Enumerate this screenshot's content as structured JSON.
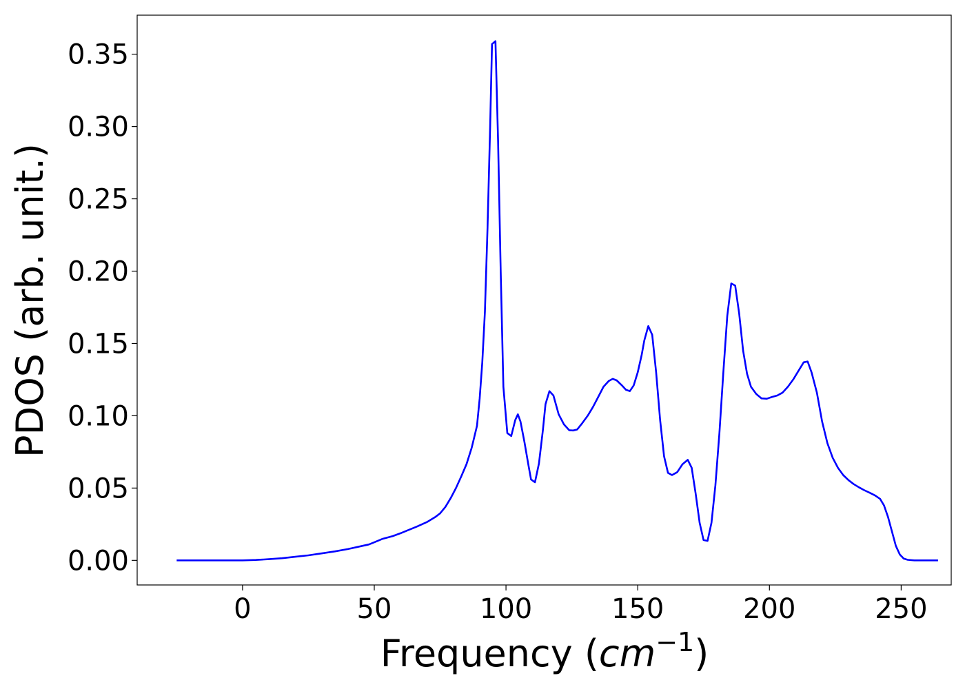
{
  "chart_data": {
    "type": "line",
    "title": "",
    "xlabel": "Frequency (cm⁻¹)",
    "xlabel_parts": {
      "prefix": "Frequency (",
      "italic": "cm",
      "superscript": "−1",
      "suffix": ")"
    },
    "ylabel": "PDOS (arb. unit.)",
    "xlim": [
      -40,
      269
    ],
    "ylim": [
      -0.017,
      0.377
    ],
    "xticks": [
      0,
      50,
      100,
      150,
      200,
      250
    ],
    "xtick_labels": [
      "0",
      "50",
      "100",
      "150",
      "200",
      "250"
    ],
    "yticks": [
      0.0,
      0.05,
      0.1,
      0.15,
      0.2,
      0.25,
      0.3,
      0.35
    ],
    "ytick_labels": [
      "0.00",
      "0.05",
      "0.10",
      "0.15",
      "0.20",
      "0.25",
      "0.30",
      "0.35"
    ],
    "grid": false,
    "legend": "none",
    "series": [
      {
        "color": "#0000ff",
        "points": [
          [
            -25,
            0.0
          ],
          [
            0,
            0.0
          ],
          [
            5,
            0.0003
          ],
          [
            10,
            0.0008
          ],
          [
            15,
            0.0015
          ],
          [
            20,
            0.0025
          ],
          [
            25,
            0.0035
          ],
          [
            30,
            0.0048
          ],
          [
            35,
            0.0062
          ],
          [
            40,
            0.0078
          ],
          [
            45,
            0.0098
          ],
          [
            48,
            0.011
          ],
          [
            50,
            0.0125
          ],
          [
            53,
            0.0148
          ],
          [
            57,
            0.0168
          ],
          [
            60,
            0.0188
          ],
          [
            63,
            0.021
          ],
          [
            66,
            0.0232
          ],
          [
            70,
            0.0265
          ],
          [
            73,
            0.0298
          ],
          [
            75,
            0.0325
          ],
          [
            77,
            0.037
          ],
          [
            79,
            0.043
          ],
          [
            81,
            0.05
          ],
          [
            83,
            0.058
          ],
          [
            85,
            0.0665
          ],
          [
            87,
            0.078
          ],
          [
            89,
            0.093
          ],
          [
            90,
            0.112
          ],
          [
            91,
            0.137
          ],
          [
            92,
            0.172
          ],
          [
            93,
            0.23
          ],
          [
            94,
            0.3
          ],
          [
            94.7,
            0.357
          ],
          [
            96,
            0.359
          ],
          [
            97,
            0.29
          ],
          [
            98,
            0.2
          ],
          [
            99,
            0.12
          ],
          [
            100.5,
            0.088
          ],
          [
            102,
            0.086
          ],
          [
            103.5,
            0.097
          ],
          [
            104.5,
            0.101
          ],
          [
            105.5,
            0.096
          ],
          [
            107,
            0.082
          ],
          [
            108.5,
            0.066
          ],
          [
            109.5,
            0.056
          ],
          [
            111,
            0.054
          ],
          [
            112.5,
            0.067
          ],
          [
            114,
            0.09
          ],
          [
            115,
            0.108
          ],
          [
            116.5,
            0.117
          ],
          [
            118,
            0.114
          ],
          [
            120,
            0.101
          ],
          [
            122,
            0.094
          ],
          [
            124,
            0.09
          ],
          [
            125.5,
            0.0898
          ],
          [
            127,
            0.0905
          ],
          [
            129,
            0.095
          ],
          [
            131,
            0.1
          ],
          [
            133,
            0.106
          ],
          [
            135,
            0.113
          ],
          [
            137,
            0.12
          ],
          [
            139,
            0.124
          ],
          [
            140.5,
            0.1255
          ],
          [
            142,
            0.1245
          ],
          [
            144,
            0.121
          ],
          [
            145.5,
            0.118
          ],
          [
            147,
            0.117
          ],
          [
            148.5,
            0.121
          ],
          [
            150,
            0.13
          ],
          [
            151.5,
            0.142
          ],
          [
            152.5,
            0.152
          ],
          [
            154,
            0.162
          ],
          [
            155.5,
            0.156
          ],
          [
            157,
            0.13
          ],
          [
            158.5,
            0.097
          ],
          [
            160,
            0.072
          ],
          [
            161.5,
            0.0605
          ],
          [
            163,
            0.059
          ],
          [
            165,
            0.061
          ],
          [
            167,
            0.0665
          ],
          [
            169,
            0.0695
          ],
          [
            170.5,
            0.064
          ],
          [
            172,
            0.046
          ],
          [
            173.5,
            0.026
          ],
          [
            175,
            0.014
          ],
          [
            176.5,
            0.0135
          ],
          [
            178,
            0.026
          ],
          [
            179.5,
            0.052
          ],
          [
            181,
            0.088
          ],
          [
            182.5,
            0.13
          ],
          [
            184,
            0.169
          ],
          [
            185.5,
            0.1915
          ],
          [
            187,
            0.19
          ],
          [
            188.5,
            0.171
          ],
          [
            190,
            0.145
          ],
          [
            191.5,
            0.129
          ],
          [
            193,
            0.12
          ],
          [
            195,
            0.115
          ],
          [
            197,
            0.112
          ],
          [
            199,
            0.1118
          ],
          [
            201,
            0.113
          ],
          [
            203,
            0.114
          ],
          [
            205,
            0.116
          ],
          [
            207,
            0.12
          ],
          [
            209,
            0.125
          ],
          [
            211,
            0.131
          ],
          [
            213,
            0.137
          ],
          [
            214.5,
            0.1375
          ],
          [
            216,
            0.13
          ],
          [
            218,
            0.116
          ],
          [
            220,
            0.096
          ],
          [
            222,
            0.081
          ],
          [
            224,
            0.071
          ],
          [
            226,
            0.064
          ],
          [
            228,
            0.059
          ],
          [
            230,
            0.0555
          ],
          [
            232,
            0.0527
          ],
          [
            234,
            0.0505
          ],
          [
            236,
            0.0485
          ],
          [
            238,
            0.0468
          ],
          [
            240,
            0.045
          ],
          [
            242,
            0.0425
          ],
          [
            243.5,
            0.038
          ],
          [
            245,
            0.03
          ],
          [
            246.5,
            0.02
          ],
          [
            248,
            0.01
          ],
          [
            249.5,
            0.004
          ],
          [
            251,
            0.0012
          ],
          [
            252.5,
            0.0004
          ],
          [
            255,
            0.0
          ],
          [
            264,
            0.0
          ]
        ]
      }
    ]
  }
}
